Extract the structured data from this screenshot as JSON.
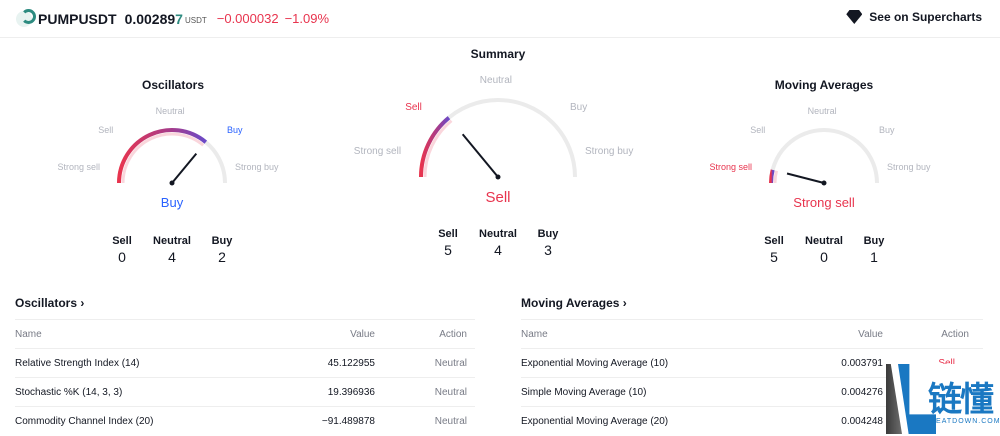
{
  "header": {
    "symbol": "PUMPUSDT",
    "price_main": "0.00289",
    "price_last": "7",
    "currency": "USDT",
    "change": "−0.000032",
    "change_pct": "−1.09%",
    "supercharts": "See on Supercharts"
  },
  "colors": {
    "sell": "#e8344e",
    "buy": "#2962ff",
    "neutral": "#b2b5be",
    "accent": "#2d8b80"
  },
  "scale_labels": {
    "strong_sell": "Strong sell",
    "sell": "Sell",
    "neutral": "Neutral",
    "buy": "Buy",
    "strong_buy": "Strong buy"
  },
  "gauges": [
    {
      "title": "Oscillators",
      "result": "Buy",
      "level": 0.72,
      "counts": {
        "sell_label": "Sell",
        "sell": "0",
        "neutral_label": "Neutral",
        "neutral": "4",
        "buy_label": "Buy",
        "buy": "2"
      }
    },
    {
      "title": "Summary",
      "result": "Sell",
      "level": 0.28,
      "counts": {
        "sell_label": "Sell",
        "sell": "5",
        "neutral_label": "Neutral",
        "neutral": "4",
        "buy_label": "Buy",
        "buy": "3"
      }
    },
    {
      "title": "Moving Averages",
      "result": "Strong sell",
      "level": 0.08,
      "counts": {
        "sell_label": "Sell",
        "sell": "5",
        "neutral_label": "Neutral",
        "neutral": "0",
        "buy_label": "Buy",
        "buy": "1"
      }
    }
  ],
  "oscillators": {
    "title": "Oscillators ›",
    "cols": [
      "Name",
      "Value",
      "Action"
    ],
    "rows": [
      {
        "name": "Relative Strength Index (14)",
        "value": "45.122955",
        "action": "Neutral"
      },
      {
        "name": "Stochastic %K (14, 3, 3)",
        "value": "19.396936",
        "action": "Neutral"
      },
      {
        "name": "Commodity Channel Index (20)",
        "value": "−91.489878",
        "action": "Neutral"
      }
    ]
  },
  "moving_averages": {
    "title": "Moving Averages ›",
    "cols": [
      "Name",
      "Value",
      "Action"
    ],
    "rows": [
      {
        "name": "Exponential Moving Average (10)",
        "value": "0.003791",
        "action": "Sell"
      },
      {
        "name": "Simple Moving Average (10)",
        "value": "0.004276",
        "action": ""
      },
      {
        "name": "Exponential Moving Average (20)",
        "value": "0.004248",
        "action": ""
      }
    ]
  },
  "watermark": {
    "cn": "链懂",
    "en": "NEATDOWN.COM"
  }
}
